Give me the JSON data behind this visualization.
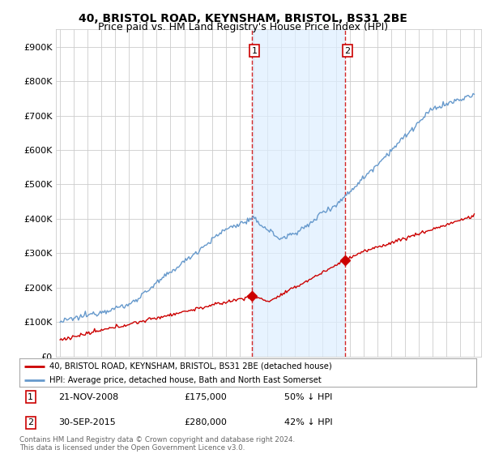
{
  "title": "40, BRISTOL ROAD, KEYNSHAM, BRISTOL, BS31 2BE",
  "subtitle": "Price paid vs. HM Land Registry's House Price Index (HPI)",
  "ylim": [
    0,
    950000
  ],
  "yticks": [
    0,
    100000,
    200000,
    300000,
    400000,
    500000,
    600000,
    700000,
    800000,
    900000
  ],
  "plot_bg": "#ffffff",
  "grid_color": "#cccccc",
  "red_color": "#cc0000",
  "blue_color": "#6699cc",
  "shade_color": "#ddeeff",
  "pt1_idx": 167,
  "pt1_price": 175000,
  "pt2_idx": 248,
  "pt2_price": 280000,
  "legend_line1": "40, BRISTOL ROAD, KEYNSHAM, BRISTOL, BS31 2BE (detached house)",
  "legend_line2": "HPI: Average price, detached house, Bath and North East Somerset",
  "row1_date": "21-NOV-2008",
  "row1_price": "£175,000",
  "row1_pct": "50% ↓ HPI",
  "row2_date": "30-SEP-2015",
  "row2_price": "£280,000",
  "row2_pct": "42% ↓ HPI",
  "footer": "Contains HM Land Registry data © Crown copyright and database right 2024.\nThis data is licensed under the Open Government Licence v3.0.",
  "title_fontsize": 10,
  "subtitle_fontsize": 9,
  "n_months": 361,
  "year_start": 1995,
  "year_end": 2025
}
